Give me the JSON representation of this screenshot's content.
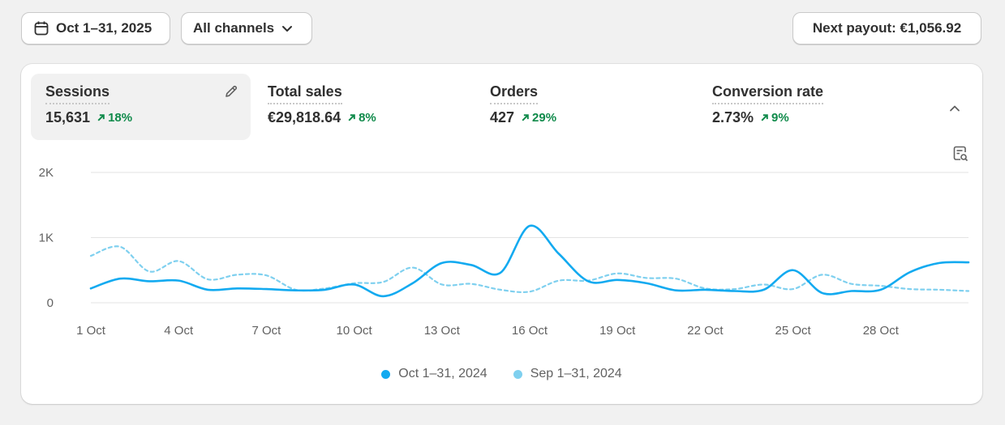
{
  "toolbar": {
    "date_range": "Oct 1–31, 2025",
    "channel": "All channels",
    "payout": "Next payout: €1,056.92"
  },
  "metrics": [
    {
      "label": "Sessions",
      "value": "15,631",
      "change": "18%"
    },
    {
      "label": "Total sales",
      "value": "€29,818.64",
      "change": "8%"
    },
    {
      "label": "Orders",
      "value": "427",
      "change": "29%"
    },
    {
      "label": "Conversion rate",
      "value": "2.73%",
      "change": "9%"
    }
  ],
  "colors": {
    "current": "#13aaf0",
    "previous": "#7fd0ef",
    "positive": "#0f8a4a"
  },
  "icons": [
    "calendar-icon",
    "chevron-down-icon",
    "edit-icon",
    "chevron-up-icon",
    "report-icon",
    "trend-up-icon"
  ],
  "chart_data": {
    "type": "line",
    "x": [
      1,
      2,
      3,
      4,
      5,
      6,
      7,
      8,
      9,
      10,
      11,
      12,
      13,
      14,
      15,
      16,
      17,
      18,
      19,
      20,
      21,
      22,
      23,
      24,
      25,
      26,
      27,
      28,
      29,
      30,
      31
    ],
    "x_tick_labels": [
      "1 Oct",
      "4 Oct",
      "7 Oct",
      "10 Oct",
      "13 Oct",
      "16 Oct",
      "19 Oct",
      "22 Oct",
      "25 Oct",
      "28 Oct"
    ],
    "x_tick_positions": [
      1,
      4,
      7,
      10,
      13,
      16,
      19,
      22,
      25,
      28
    ],
    "y_tick_labels": [
      "0",
      "1K",
      "2K"
    ],
    "y_tick_values": [
      0,
      1000,
      2000
    ],
    "ylim": [
      0,
      2000
    ],
    "grid": true,
    "legend_position": "bottom-center",
    "series": [
      {
        "name": "Oct 1–31, 2024",
        "style": "solid",
        "values": [
          220,
          370,
          330,
          340,
          200,
          220,
          210,
          190,
          200,
          280,
          100,
          300,
          610,
          580,
          460,
          1180,
          750,
          330,
          350,
          300,
          190,
          200,
          180,
          200,
          500,
          150,
          180,
          200,
          470,
          610,
          620
        ]
      },
      {
        "name": "Sep 1–31, 2024",
        "style": "dashed",
        "values": [
          720,
          860,
          480,
          640,
          360,
          430,
          420,
          200,
          220,
          300,
          320,
          540,
          280,
          290,
          200,
          170,
          340,
          340,
          450,
          380,
          370,
          220,
          210,
          280,
          210,
          430,
          290,
          260,
          210,
          200,
          180
        ]
      }
    ]
  }
}
